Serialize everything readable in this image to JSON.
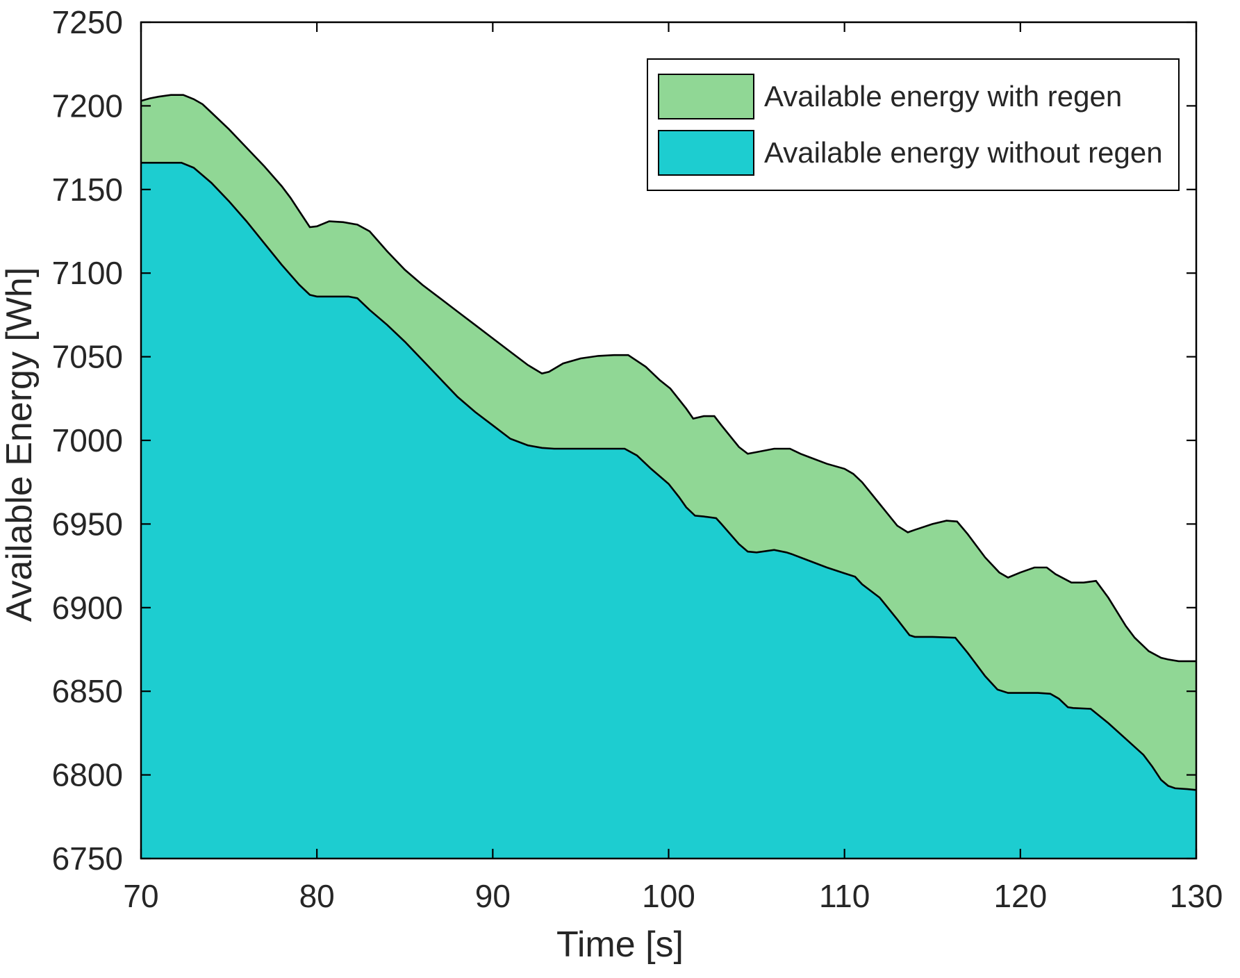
{
  "chart_data": {
    "type": "area",
    "title": "",
    "xlabel": "Time [s]",
    "ylabel": "Available Energy [Wh]",
    "xlim": [
      70,
      130
    ],
    "ylim": [
      6750,
      7250
    ],
    "x_ticks": [
      70,
      80,
      90,
      100,
      110,
      120,
      130
    ],
    "y_ticks": [
      6750,
      6800,
      6850,
      6900,
      6950,
      7000,
      7050,
      7100,
      7150,
      7200,
      7250
    ],
    "grid": false,
    "legend_position": "inside-top-right",
    "axis_color": "#000000",
    "series": [
      {
        "name": "Available energy with regen",
        "fill_color": "#90d795",
        "edge_color": "#000000",
        "points": [
          [
            70,
            7203
          ],
          [
            70.5,
            7204.5
          ],
          [
            71,
            7205.5
          ],
          [
            71.7,
            7206.5
          ],
          [
            72.4,
            7206.5
          ],
          [
            73,
            7204
          ],
          [
            73.5,
            7201
          ],
          [
            74,
            7196
          ],
          [
            75,
            7186
          ],
          [
            76,
            7175
          ],
          [
            77,
            7164
          ],
          [
            78,
            7152
          ],
          [
            78.5,
            7145
          ],
          [
            79,
            7137
          ],
          [
            79.6,
            7127.5
          ],
          [
            80,
            7128
          ],
          [
            80.7,
            7131
          ],
          [
            81.5,
            7130.5
          ],
          [
            82.3,
            7129
          ],
          [
            83,
            7125
          ],
          [
            84,
            7113
          ],
          [
            85,
            7102
          ],
          [
            86,
            7093
          ],
          [
            87,
            7085
          ],
          [
            88,
            7077
          ],
          [
            89,
            7069
          ],
          [
            90,
            7061
          ],
          [
            91,
            7053
          ],
          [
            92,
            7045
          ],
          [
            92.8,
            7040
          ],
          [
            93.2,
            7041
          ],
          [
            94,
            7046
          ],
          [
            95,
            7049
          ],
          [
            96,
            7050.5
          ],
          [
            96.9,
            7051
          ],
          [
            97.7,
            7051
          ],
          [
            98.7,
            7044
          ],
          [
            99.5,
            7036
          ],
          [
            100.1,
            7031
          ],
          [
            101,
            7019
          ],
          [
            101.4,
            7013
          ],
          [
            102,
            7014.5
          ],
          [
            102.6,
            7014.5
          ],
          [
            103,
            7009
          ],
          [
            104,
            6996
          ],
          [
            104.5,
            6992
          ],
          [
            105,
            6993
          ],
          [
            106,
            6995
          ],
          [
            106.9,
            6995
          ],
          [
            107.5,
            6992
          ],
          [
            108,
            6990
          ],
          [
            109,
            6986
          ],
          [
            110,
            6983
          ],
          [
            110.5,
            6980
          ],
          [
            111,
            6975
          ],
          [
            112,
            6962
          ],
          [
            113,
            6949
          ],
          [
            113.6,
            6945
          ],
          [
            114,
            6946.5
          ],
          [
            115,
            6950
          ],
          [
            115.8,
            6952
          ],
          [
            116.4,
            6951.5
          ],
          [
            117,
            6944
          ],
          [
            118,
            6930
          ],
          [
            118.8,
            6921
          ],
          [
            119.3,
            6918
          ],
          [
            120,
            6921
          ],
          [
            120.8,
            6924
          ],
          [
            121.5,
            6924
          ],
          [
            122,
            6920
          ],
          [
            122.9,
            6915
          ],
          [
            123.6,
            6915
          ],
          [
            124.3,
            6916
          ],
          [
            125,
            6906
          ],
          [
            126,
            6889
          ],
          [
            126.5,
            6882
          ],
          [
            127.3,
            6874
          ],
          [
            128,
            6870
          ],
          [
            128.4,
            6869
          ],
          [
            129,
            6868
          ],
          [
            130,
            6868
          ]
        ]
      },
      {
        "name": "Available energy without regen",
        "fill_color": "#1dcdd0",
        "edge_color": "#000000",
        "points": [
          [
            70,
            7166
          ],
          [
            71,
            7166
          ],
          [
            72.3,
            7166
          ],
          [
            73,
            7163
          ],
          [
            74,
            7154
          ],
          [
            75,
            7143
          ],
          [
            76,
            7131
          ],
          [
            77,
            7118
          ],
          [
            78,
            7105
          ],
          [
            79,
            7093
          ],
          [
            79.6,
            7087
          ],
          [
            80,
            7086
          ],
          [
            81,
            7086
          ],
          [
            81.8,
            7086
          ],
          [
            82.3,
            7085
          ],
          [
            83,
            7078
          ],
          [
            84,
            7069
          ],
          [
            85,
            7059
          ],
          [
            86,
            7048
          ],
          [
            87,
            7037
          ],
          [
            88,
            7026
          ],
          [
            89,
            7017
          ],
          [
            90,
            7009
          ],
          [
            91,
            7001
          ],
          [
            92,
            6997
          ],
          [
            92.8,
            6995.5
          ],
          [
            93.5,
            6995
          ],
          [
            95,
            6995
          ],
          [
            96,
            6995
          ],
          [
            97.5,
            6995
          ],
          [
            98.2,
            6991
          ],
          [
            99,
            6983
          ],
          [
            100,
            6974
          ],
          [
            100.6,
            6966
          ],
          [
            101,
            6960
          ],
          [
            101.5,
            6955
          ],
          [
            102,
            6954.5
          ],
          [
            102.7,
            6953.5
          ],
          [
            103,
            6950
          ],
          [
            104,
            6938
          ],
          [
            104.5,
            6933.5
          ],
          [
            105,
            6933
          ],
          [
            106,
            6934.5
          ],
          [
            106.7,
            6933
          ],
          [
            107,
            6932
          ],
          [
            108,
            6928
          ],
          [
            109,
            6924
          ],
          [
            110,
            6920.5
          ],
          [
            110.6,
            6918.5
          ],
          [
            111,
            6914
          ],
          [
            112,
            6906
          ],
          [
            113,
            6893
          ],
          [
            113.7,
            6883.5
          ],
          [
            114,
            6882.5
          ],
          [
            115,
            6882.5
          ],
          [
            116.3,
            6882
          ],
          [
            117,
            6873
          ],
          [
            118,
            6859
          ],
          [
            118.7,
            6851
          ],
          [
            119.3,
            6849
          ],
          [
            120,
            6849
          ],
          [
            121,
            6849
          ],
          [
            121.7,
            6848.5
          ],
          [
            122.2,
            6845.5
          ],
          [
            122.7,
            6840.5
          ],
          [
            123,
            6840
          ],
          [
            124,
            6839.5
          ],
          [
            125,
            6831
          ],
          [
            126,
            6821.5
          ],
          [
            127,
            6812
          ],
          [
            127.5,
            6805
          ],
          [
            128,
            6797
          ],
          [
            128.4,
            6793.5
          ],
          [
            128.8,
            6792
          ],
          [
            129.5,
            6791.5
          ],
          [
            130,
            6791
          ]
        ]
      }
    ]
  },
  "legend": {
    "items": [
      {
        "label": "Available energy with regen"
      },
      {
        "label": "Available energy without regen"
      }
    ]
  }
}
